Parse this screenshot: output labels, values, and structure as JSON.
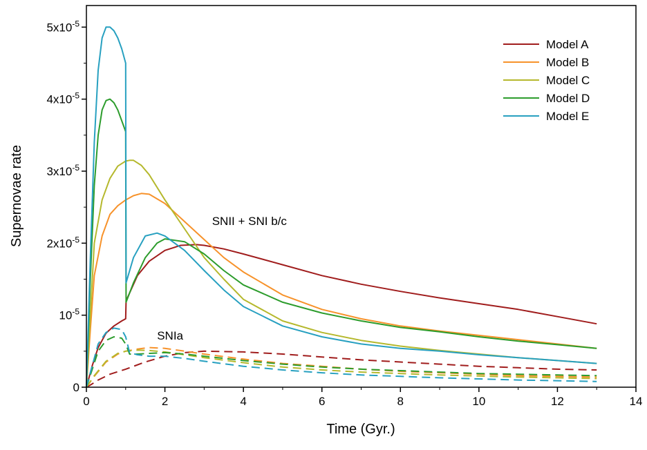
{
  "chart_data": {
    "type": "line",
    "xlabel": "Time (Gyr.)",
    "ylabel": "Supernovae rate",
    "xlim": [
      0,
      14
    ],
    "ylim": [
      0,
      5.3e-05
    ],
    "x_ticks": [
      0,
      2,
      4,
      6,
      8,
      10,
      12,
      14
    ],
    "x_tick_labels": [
      "0",
      "2",
      "4",
      "6",
      "8",
      "10",
      "12",
      "14"
    ],
    "y_ticks": [
      {
        "value": 0,
        "base": "0",
        "exp": ""
      },
      {
        "value": 1e-05,
        "base": "10",
        "exp": "-5"
      },
      {
        "value": 2e-05,
        "base": "2x10",
        "exp": "-5"
      },
      {
        "value": 3e-05,
        "base": "3x10",
        "exp": "-5"
      },
      {
        "value": 4e-05,
        "base": "4x10",
        "exp": "-5"
      },
      {
        "value": 5e-05,
        "base": "5x10",
        "exp": "-5"
      }
    ],
    "legend_position": "top-right",
    "grid": false,
    "annotations": [
      {
        "text": "SNII + SNI b/c",
        "x": 3.2,
        "y": 2.25e-05
      },
      {
        "text": "SNIa",
        "x": 1.8,
        "y": 6.6e-06
      }
    ],
    "series": [
      {
        "name": "Model A",
        "color": "#a01c1c",
        "group": "SNII + SNI b/c",
        "dashed": false,
        "x": [
          0,
          0.15,
          0.3,
          0.5,
          0.7,
          0.9,
          1.0,
          1.01,
          1.3,
          1.6,
          2.0,
          2.4,
          2.8,
          3.0,
          3.5,
          4,
          5,
          6,
          7,
          8,
          9,
          10,
          11,
          12,
          13
        ],
        "y": [
          0,
          3e-06,
          5.5e-06,
          7.5e-06,
          8.5e-06,
          9.2e-06,
          9.5e-06,
          1.2e-05,
          1.55e-05,
          1.75e-05,
          1.9e-05,
          1.97e-05,
          1.98e-05,
          1.97e-05,
          1.92e-05,
          1.85e-05,
          1.7e-05,
          1.55e-05,
          1.43e-05,
          1.33e-05,
          1.24e-05,
          1.16e-05,
          1.08e-05,
          9.8e-06,
          8.8e-06
        ]
      },
      {
        "name": "Model B",
        "color": "#f7922a",
        "group": "SNII + SNI b/c",
        "dashed": false,
        "x": [
          0,
          0.1,
          0.2,
          0.4,
          0.6,
          0.8,
          1.0,
          1.2,
          1.4,
          1.6,
          2.0,
          2.5,
          3.0,
          3.5,
          4,
          5,
          6,
          7,
          8,
          9,
          10,
          11,
          12,
          13
        ],
        "y": [
          0,
          8e-06,
          1.55e-05,
          2.1e-05,
          2.4e-05,
          2.52e-05,
          2.6e-05,
          2.66e-05,
          2.69e-05,
          2.68e-05,
          2.55e-05,
          2.3e-05,
          2.05e-05,
          1.8e-05,
          1.6e-05,
          1.28e-05,
          1.08e-05,
          9.5e-06,
          8.5e-06,
          7.8e-06,
          7.2e-06,
          6.6e-06,
          6e-06,
          5.4e-06
        ]
      },
      {
        "name": "Model C",
        "color": "#b5b82c",
        "group": "SNII + SNI b/c",
        "dashed": false,
        "x": [
          0,
          0.1,
          0.2,
          0.4,
          0.6,
          0.8,
          1.0,
          1.1,
          1.2,
          1.4,
          1.6,
          2.0,
          2.5,
          3.0,
          3.5,
          4,
          5,
          6,
          7,
          8,
          9,
          10,
          11,
          12,
          13
        ],
        "y": [
          0,
          1e-05,
          2e-05,
          2.6e-05,
          2.9e-05,
          3.07e-05,
          3.14e-05,
          3.15e-05,
          3.15e-05,
          3.08e-05,
          2.95e-05,
          2.6e-05,
          2.2e-05,
          1.8e-05,
          1.5e-05,
          1.22e-05,
          9.2e-06,
          7.6e-06,
          6.5e-06,
          5.7e-06,
          5.1e-06,
          4.6e-06,
          4.1e-06,
          3.7e-06,
          3.3e-06
        ]
      },
      {
        "name": "Model D",
        "color": "#2c9c2c",
        "group": "SNII + SNI b/c",
        "dashed": false,
        "x": [
          0,
          0.1,
          0.2,
          0.3,
          0.4,
          0.5,
          0.6,
          0.7,
          0.8,
          0.9,
          1.0,
          1.01,
          1.2,
          1.5,
          1.8,
          2.0,
          2.5,
          3.0,
          3.5,
          4,
          5,
          6,
          7,
          8,
          9,
          10,
          11,
          12,
          13
        ],
        "y": [
          0,
          1.5e-05,
          2.8e-05,
          3.5e-05,
          3.85e-05,
          3.98e-05,
          4e-05,
          3.95e-05,
          3.85e-05,
          3.7e-05,
          3.55e-05,
          1.18e-05,
          1.45e-05,
          1.8e-05,
          2e-05,
          2.06e-05,
          2.02e-05,
          1.85e-05,
          1.62e-05,
          1.42e-05,
          1.18e-05,
          1.03e-05,
          9.2e-06,
          8.3e-06,
          7.7e-06,
          7e-06,
          6.4e-06,
          5.9e-06,
          5.4e-06
        ]
      },
      {
        "name": "Model E",
        "color": "#27a0c0",
        "group": "SNII + SNI b/c",
        "dashed": false,
        "x": [
          0,
          0.1,
          0.2,
          0.3,
          0.4,
          0.5,
          0.6,
          0.7,
          0.8,
          0.9,
          1.0,
          1.01,
          1.2,
          1.5,
          1.8,
          2.0,
          2.5,
          3.0,
          3.5,
          4,
          5,
          6,
          7,
          8,
          9,
          10,
          11,
          12,
          13
        ],
        "y": [
          0,
          1.8e-05,
          3.4e-05,
          4.4e-05,
          4.85e-05,
          5e-05,
          5e-05,
          4.95e-05,
          4.85e-05,
          4.7e-05,
          4.5e-05,
          1.45e-05,
          1.8e-05,
          2.1e-05,
          2.14e-05,
          2.1e-05,
          1.9e-05,
          1.62e-05,
          1.35e-05,
          1.12e-05,
          8.5e-06,
          7e-06,
          6e-06,
          5.4e-06,
          5e-06,
          4.5e-06,
          4.1e-06,
          3.7e-06,
          3.3e-06
        ]
      },
      {
        "name": "Model A",
        "color": "#a01c1c",
        "group": "SNIa",
        "dashed": true,
        "x": [
          0,
          0.1,
          0.3,
          0.6,
          1.0,
          1.5,
          2.0,
          2.5,
          3,
          4,
          5,
          6,
          7,
          8,
          9,
          10,
          11,
          12,
          13
        ],
        "y": [
          0,
          3e-07,
          1e-06,
          1.8e-06,
          2.5e-06,
          3.5e-06,
          4.3e-06,
          4.8e-06,
          5e-06,
          4.9e-06,
          4.6e-06,
          4.2e-06,
          3.8e-06,
          3.5e-06,
          3.2e-06,
          2.9e-06,
          2.7e-06,
          2.5e-06,
          2.4e-06
        ]
      },
      {
        "name": "Model B",
        "color": "#f7922a",
        "group": "SNIa",
        "dashed": true,
        "x": [
          0,
          0.2,
          0.5,
          0.8,
          1.0,
          1.3,
          1.6,
          2.0,
          2.5,
          3,
          4,
          5,
          6,
          7,
          8,
          9,
          10,
          11,
          12,
          13
        ],
        "y": [
          0,
          1.5e-06,
          3.5e-06,
          4.6e-06,
          5e-06,
          5.3e-06,
          5.5e-06,
          5.4e-06,
          5e-06,
          4.6e-06,
          3.9e-06,
          3.3e-06,
          2.9e-06,
          2.5e-06,
          2.2e-06,
          2e-06,
          1.8e-06,
          1.6e-06,
          1.5e-06,
          1.4e-06
        ]
      },
      {
        "name": "Model C",
        "color": "#b5b82c",
        "group": "SNIa",
        "dashed": true,
        "x": [
          0,
          0.2,
          0.5,
          0.8,
          1.0,
          1.3,
          1.6,
          2.0,
          2.5,
          3,
          4,
          5,
          6,
          7,
          8,
          9,
          10,
          11,
          12,
          13
        ],
        "y": [
          0,
          1.6e-06,
          3.6e-06,
          4.7e-06,
          5e-06,
          5.15e-06,
          5.1e-06,
          4.9e-06,
          4.5e-06,
          4.1e-06,
          3.4e-06,
          2.8e-06,
          2.4e-06,
          2.1e-06,
          1.9e-06,
          1.7e-06,
          1.55e-06,
          1.4e-06,
          1.3e-06,
          1.2e-06
        ]
      },
      {
        "name": "Model D",
        "color": "#2c9c2c",
        "group": "SNIa",
        "dashed": true,
        "x": [
          0,
          0.15,
          0.3,
          0.5,
          0.7,
          0.9,
          1.0,
          1.1,
          1.3,
          1.6,
          2.0,
          2.5,
          3,
          4,
          5,
          6,
          7,
          8,
          9,
          10,
          11,
          12,
          13
        ],
        "y": [
          0,
          2.5e-06,
          5e-06,
          6.5e-06,
          7e-06,
          6.8e-06,
          6e-06,
          4.6e-06,
          4.6e-06,
          4.7e-06,
          4.8e-06,
          4.6e-06,
          4.3e-06,
          3.7e-06,
          3.2e-06,
          2.8e-06,
          2.5e-06,
          2.3e-06,
          2.1e-06,
          1.9e-06,
          1.8e-06,
          1.7e-06,
          1.6e-06
        ]
      },
      {
        "name": "Model E",
        "color": "#27a0c0",
        "group": "SNIa",
        "dashed": true,
        "x": [
          0,
          0.15,
          0.3,
          0.5,
          0.7,
          0.9,
          1.0,
          1.1,
          1.3,
          1.6,
          2.0,
          2.5,
          3,
          4,
          5,
          6,
          7,
          8,
          9,
          10,
          11,
          12,
          13
        ],
        "y": [
          0,
          3e-06,
          6e-06,
          7.6e-06,
          8.2e-06,
          8e-06,
          7e-06,
          4.8e-06,
          4.5e-06,
          4.3e-06,
          4.3e-06,
          4e-06,
          3.6e-06,
          2.9e-06,
          2.4e-06,
          2e-06,
          1.7e-06,
          1.5e-06,
          1.3e-06,
          1.15e-06,
          1e-06,
          9e-07,
          8e-07
        ]
      }
    ],
    "legend": [
      {
        "name": "Model A",
        "color": "#a01c1c"
      },
      {
        "name": "Model B",
        "color": "#f7922a"
      },
      {
        "name": "Model C",
        "color": "#b5b82c"
      },
      {
        "name": "Model D",
        "color": "#2c9c2c"
      },
      {
        "name": "Model E",
        "color": "#27a0c0"
      }
    ]
  }
}
